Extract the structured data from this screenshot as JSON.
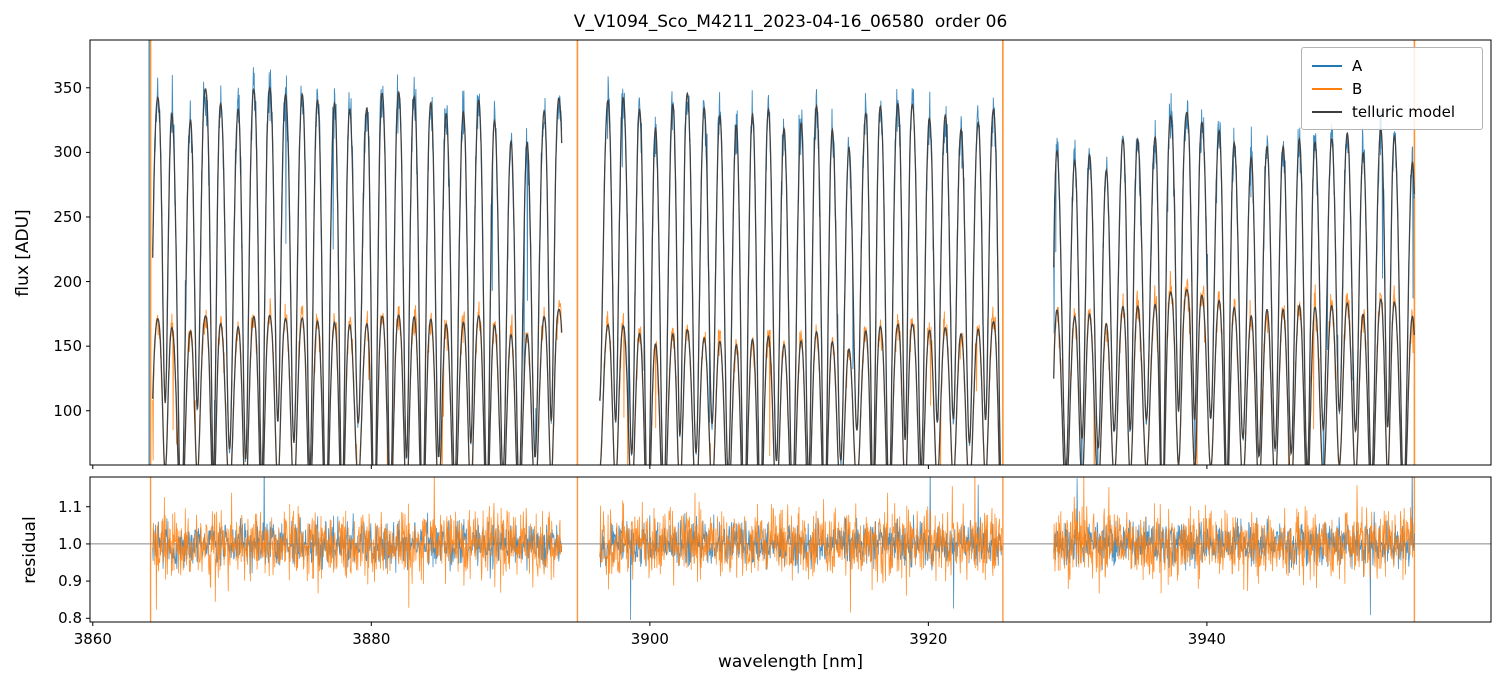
{
  "figure": {
    "background": "#ffffff"
  },
  "chart_data": {
    "type": "line",
    "title": "V_V1094_Sco_M4211_2023-04-16_06580  order 06",
    "xlabel": "wavelength [nm]",
    "xlim": [
      3859.8,
      3960.4
    ],
    "xticks": [
      3860,
      3880,
      3900,
      3920,
      3940
    ],
    "xtick_labels": [
      "3860",
      "3880",
      "3900",
      "3920",
      "3940"
    ],
    "grid": false,
    "segments": [
      [
        3864.3,
        3893.7
      ],
      [
        3896.4,
        3925.3
      ],
      [
        3929.0,
        3954.9
      ]
    ],
    "edge_spikes": [
      3864.15,
      3894.8,
      3925.35,
      3954.9
    ],
    "telluric": {
      "first_line": 3865.2,
      "spacing": 1.155,
      "core_width_nm": 0.22,
      "min_transmission": 0.05
    },
    "panels": [
      {
        "name": "flux",
        "ylabel": "flux [ADU]",
        "ylim": [
          58,
          387
        ],
        "yticks": [
          100,
          150,
          200,
          250,
          300,
          350
        ],
        "ytick_labels": [
          "100",
          "150",
          "200",
          "250",
          "300",
          "350"
        ],
        "legend": {
          "position": "upper right",
          "entries": [
            {
              "label": "A",
              "color": "#1f77b4"
            },
            {
              "label": "B",
              "color": "#ff7f0e"
            },
            {
              "label": "telluric model",
              "color": "#3d3d3d"
            }
          ]
        }
      },
      {
        "name": "residual",
        "ylabel": "residual",
        "ylim": [
          0.79,
          1.18
        ],
        "yticks": [
          0.8,
          0.9,
          1.0,
          1.1
        ],
        "ytick_labels": [
          "0.8",
          "0.9",
          "1.0",
          "1.1"
        ],
        "hline": 1.0,
        "hline_color": "#888888"
      }
    ],
    "series": [
      {
        "name": "A",
        "color": "#1f77b4",
        "noise_frac": 0.03,
        "continuum": [
          [
            3864.3,
            352
          ],
          [
            3870,
            360
          ],
          [
            3876,
            362
          ],
          [
            3882,
            360
          ],
          [
            3888,
            356
          ],
          [
            3893.7,
            350
          ],
          [
            3896.4,
            358
          ],
          [
            3900,
            366
          ],
          [
            3904,
            369
          ],
          [
            3910,
            362
          ],
          [
            3916,
            352
          ],
          [
            3920,
            350
          ],
          [
            3925.3,
            346
          ],
          [
            3929,
            328
          ],
          [
            3934,
            336
          ],
          [
            3940,
            337
          ],
          [
            3946,
            338
          ],
          [
            3951,
            341
          ],
          [
            3954.9,
            336
          ]
        ]
      },
      {
        "name": "B",
        "color": "#ff7f0e",
        "noise_frac": 0.04,
        "continuum": [
          [
            3864.3,
            176
          ],
          [
            3875,
            180
          ],
          [
            3885,
            181
          ],
          [
            3893.7,
            183
          ],
          [
            3896.4,
            176
          ],
          [
            3905,
            172
          ],
          [
            3912,
            172
          ],
          [
            3920,
            174
          ],
          [
            3925.3,
            176
          ],
          [
            3929,
            194
          ],
          [
            3938,
            197
          ],
          [
            3946,
            198
          ],
          [
            3954.9,
            199
          ]
        ]
      },
      {
        "name": "telluric model",
        "color": "#3d3d3d"
      }
    ],
    "residual_series": [
      {
        "name": "A",
        "color": "#1f77b4",
        "sigma": 0.03
      },
      {
        "name": "B",
        "color": "#ff7f0e",
        "sigma": 0.045
      }
    ]
  }
}
